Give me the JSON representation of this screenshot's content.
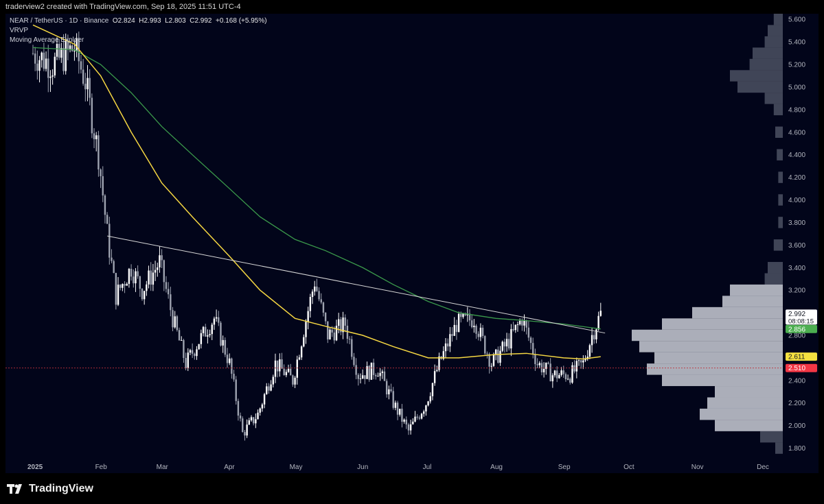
{
  "header": {
    "attribution": "traderview2 created with TradingView.com, Sep 18, 2025 11:51 UTC-4"
  },
  "legend": {
    "symbol": "NEAR / TetherUS · 1D · Binance",
    "open": "O2.824",
    "high": "H2.993",
    "low": "L2.803",
    "close": "C2.992",
    "change": "+0.168 (+5.95%)",
    "indicator_1": "VRVP",
    "indicator_2": "Moving Average Exploer"
  },
  "footer": {
    "brand": "TradingView"
  },
  "colors": {
    "background": "#02051a",
    "candle_up": "#ffffff",
    "candle_down": "#9ea3b0",
    "ma_fast": "#f5d742",
    "ma_slow": "#3b9a4b",
    "trendline": "#d8d8d8",
    "price_label_bg": "#ffffff",
    "ma_slow_label": "#4caf50",
    "ma_fast_label": "#f5e040",
    "support_label": "#f23645"
  },
  "chart_data": {
    "type": "candlestick",
    "y_ticks": [
      "5.600",
      "5.400",
      "5.200",
      "5.000",
      "4.800",
      "4.600",
      "4.400",
      "4.200",
      "4.000",
      "3.800",
      "3.600",
      "3.400",
      "3.200",
      "3.000",
      "2.800",
      "2.600",
      "2.400",
      "2.200",
      "2.000",
      "1.800"
    ],
    "x_ticks": [
      "2025",
      "Feb",
      "Mar",
      "Apr",
      "May",
      "Jun",
      "Jul",
      "Aug",
      "Sep",
      "Oct",
      "Nov",
      "Dec"
    ],
    "ylim": [
      1.7,
      5.65
    ],
    "current_price": {
      "value": "2.992",
      "countdown": "08:08:15"
    },
    "ma_slow_value": "2.856",
    "ma_fast_value": "2.611",
    "support_value": "2.510",
    "close_path": [
      [
        "2025-01-01",
        5.3
      ],
      [
        "2025-01-10",
        5.2
      ],
      [
        "2025-01-20",
        5.35
      ],
      [
        "2025-01-25",
        5.05
      ],
      [
        "2025-01-31",
        4.4
      ],
      [
        "2025-02-04",
        3.7
      ],
      [
        "2025-02-08",
        3.15
      ],
      [
        "2025-02-15",
        3.4
      ],
      [
        "2025-02-20",
        3.2
      ],
      [
        "2025-02-28",
        3.45
      ],
      [
        "2025-03-06",
        2.95
      ],
      [
        "2025-03-12",
        2.55
      ],
      [
        "2025-03-18",
        2.75
      ],
      [
        "2025-03-25",
        2.95
      ],
      [
        "2025-04-01",
        2.55
      ],
      [
        "2025-04-07",
        1.93
      ],
      [
        "2025-04-14",
        2.1
      ],
      [
        "2025-04-22",
        2.55
      ],
      [
        "2025-04-30",
        2.4
      ],
      [
        "2025-05-05",
        2.85
      ],
      [
        "2025-05-10",
        3.28
      ],
      [
        "2025-05-16",
        2.8
      ],
      [
        "2025-05-24",
        2.9
      ],
      [
        "2025-05-30",
        2.45
      ],
      [
        "2025-06-08",
        2.5
      ],
      [
        "2025-06-15",
        2.2
      ],
      [
        "2025-06-22",
        1.95
      ],
      [
        "2025-06-30",
        2.2
      ],
      [
        "2025-07-06",
        2.55
      ],
      [
        "2025-07-14",
        2.9
      ],
      [
        "2025-07-22",
        2.95
      ],
      [
        "2025-07-30",
        2.55
      ],
      [
        "2025-08-07",
        2.75
      ],
      [
        "2025-08-13",
        2.95
      ],
      [
        "2025-08-20",
        2.55
      ],
      [
        "2025-08-27",
        2.45
      ],
      [
        "2025-09-04",
        2.45
      ],
      [
        "2025-09-10",
        2.55
      ],
      [
        "2025-09-14",
        2.8
      ],
      [
        "2025-09-18",
        2.992
      ]
    ],
    "ma_fast_path": [
      [
        "2025-01-01",
        5.55
      ],
      [
        "2025-01-20",
        5.38
      ],
      [
        "2025-02-01",
        5.1
      ],
      [
        "2025-02-15",
        4.6
      ],
      [
        "2025-03-01",
        4.15
      ],
      [
        "2025-03-15",
        3.85
      ],
      [
        "2025-04-01",
        3.5
      ],
      [
        "2025-04-15",
        3.2
      ],
      [
        "2025-05-01",
        2.95
      ],
      [
        "2025-05-15",
        2.88
      ],
      [
        "2025-06-01",
        2.8
      ],
      [
        "2025-06-15",
        2.7
      ],
      [
        "2025-07-01",
        2.6
      ],
      [
        "2025-07-15",
        2.6
      ],
      [
        "2025-08-01",
        2.63
      ],
      [
        "2025-08-15",
        2.64
      ],
      [
        "2025-09-01",
        2.6
      ],
      [
        "2025-09-10",
        2.59
      ],
      [
        "2025-09-18",
        2.611
      ]
    ],
    "ma_slow_path": [
      [
        "2025-01-01",
        5.35
      ],
      [
        "2025-01-20",
        5.33
      ],
      [
        "2025-02-01",
        5.2
      ],
      [
        "2025-02-15",
        4.95
      ],
      [
        "2025-03-01",
        4.65
      ],
      [
        "2025-03-15",
        4.4
      ],
      [
        "2025-04-01",
        4.1
      ],
      [
        "2025-04-15",
        3.85
      ],
      [
        "2025-05-01",
        3.65
      ],
      [
        "2025-05-15",
        3.55
      ],
      [
        "2025-06-01",
        3.4
      ],
      [
        "2025-06-15",
        3.25
      ],
      [
        "2025-07-01",
        3.1
      ],
      [
        "2025-07-15",
        3.0
      ],
      [
        "2025-08-01",
        2.95
      ],
      [
        "2025-08-15",
        2.93
      ],
      [
        "2025-09-01",
        2.9
      ],
      [
        "2025-09-18",
        2.856
      ]
    ],
    "trendline": [
      [
        "2025-02-04",
        3.68
      ],
      [
        "2025-09-20",
        2.82
      ]
    ],
    "volume_profile": [
      [
        5.6,
        0.06
      ],
      [
        5.5,
        0.1
      ],
      [
        5.4,
        0.12
      ],
      [
        5.3,
        0.2
      ],
      [
        5.2,
        0.22
      ],
      [
        5.1,
        0.35
      ],
      [
        5.0,
        0.3
      ],
      [
        4.9,
        0.12
      ],
      [
        4.8,
        0.06
      ],
      [
        4.6,
        0.05
      ],
      [
        4.4,
        0.04
      ],
      [
        4.2,
        0.03
      ],
      [
        4.0,
        0.03
      ],
      [
        3.8,
        0.03
      ],
      [
        3.6,
        0.06
      ],
      [
        3.4,
        0.1
      ],
      [
        3.3,
        0.12
      ],
      [
        3.2,
        0.35
      ],
      [
        3.1,
        0.4
      ],
      [
        3.0,
        0.6
      ],
      [
        2.9,
        0.8
      ],
      [
        2.8,
        1.0
      ],
      [
        2.7,
        0.95
      ],
      [
        2.6,
        0.85
      ],
      [
        2.5,
        0.9
      ],
      [
        2.4,
        0.8
      ],
      [
        2.3,
        0.45
      ],
      [
        2.2,
        0.5
      ],
      [
        2.1,
        0.55
      ],
      [
        2.0,
        0.45
      ],
      [
        1.9,
        0.15
      ],
      [
        1.8,
        0.05
      ]
    ]
  }
}
